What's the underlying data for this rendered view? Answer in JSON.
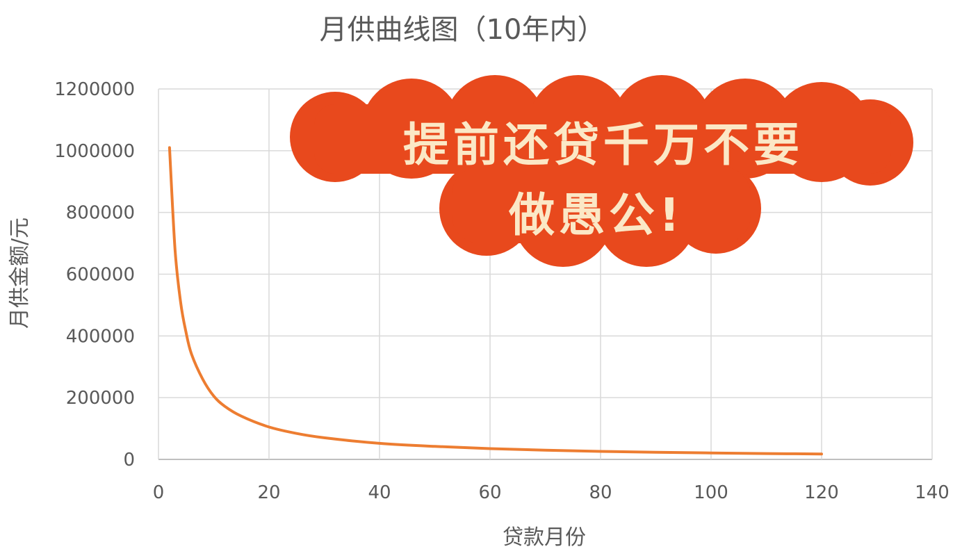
{
  "chart_data": {
    "type": "line",
    "title": "月供曲线图（10年内）",
    "xlabel": "贷款月份",
    "ylabel": "月供金额/元",
    "xlim": [
      0,
      140
    ],
    "ylim": [
      0,
      1200000
    ],
    "x_ticks": [
      "0",
      "20",
      "40",
      "60",
      "80",
      "100",
      "120",
      "140"
    ],
    "y_ticks": [
      "0",
      "200000",
      "400000",
      "600000",
      "800000",
      "1000000",
      "1200000"
    ],
    "grid": true,
    "legend": "none",
    "series": [
      {
        "color": "#ed7d31",
        "points": [
          [
            2,
            1010000
          ],
          [
            3,
            680000
          ],
          [
            4,
            510000
          ],
          [
            5,
            410000
          ],
          [
            6,
            340000
          ],
          [
            8,
            260000
          ],
          [
            10,
            205000
          ],
          [
            12,
            172000
          ],
          [
            15,
            140000
          ],
          [
            20,
            105000
          ],
          [
            25,
            84000
          ],
          [
            30,
            70000
          ],
          [
            40,
            52000
          ],
          [
            50,
            42000
          ],
          [
            60,
            35000
          ],
          [
            70,
            30000
          ],
          [
            80,
            26000
          ],
          [
            90,
            23000
          ],
          [
            100,
            21000
          ],
          [
            110,
            19000
          ],
          [
            120,
            17500
          ]
        ]
      }
    ]
  },
  "banner": {
    "line1": "提前还贷千万不要",
    "line2": "做愚公!",
    "bg_color": "#e8491d",
    "text_color": "#fbe8c6"
  }
}
